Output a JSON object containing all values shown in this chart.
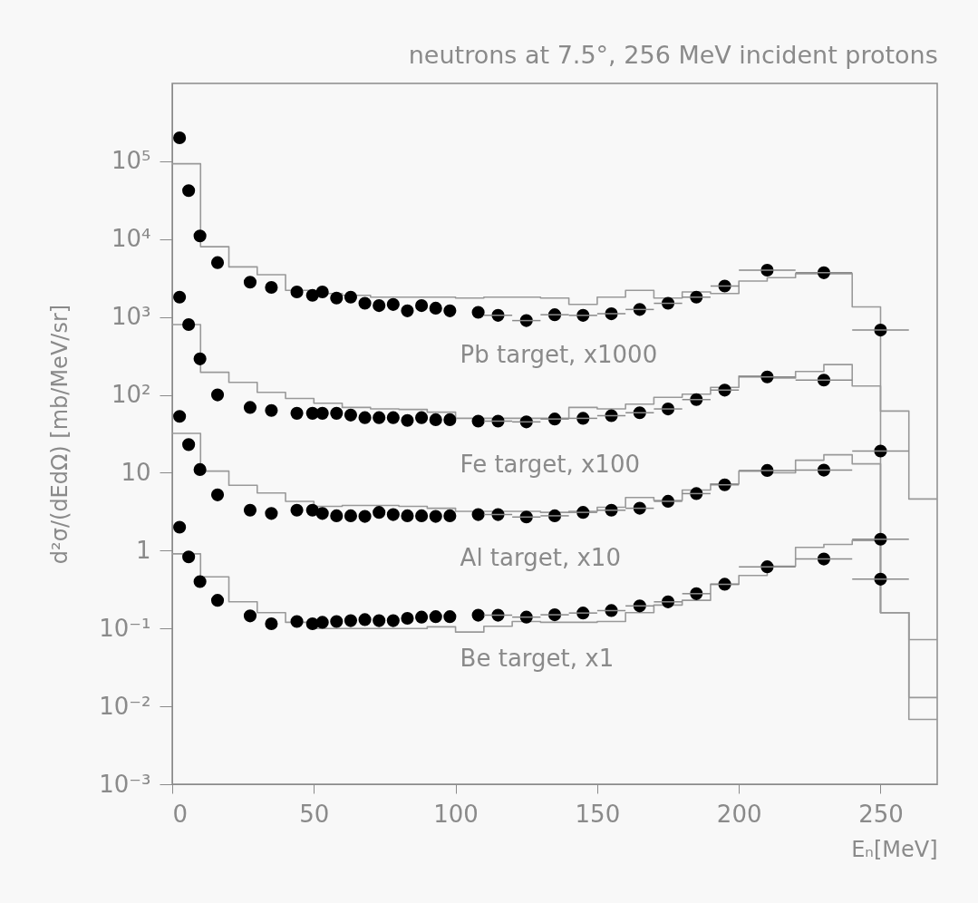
{
  "chart_data": {
    "type": "scatter",
    "title": "neutrons at 7.5°, 256 MeV incident protons",
    "xlabel": "Eₙ[MeV]",
    "ylabel": "d²σ/(dEdΩ) [mb/MeV/sr]",
    "log": "y",
    "xlim": [
      0,
      270
    ],
    "xticks": [
      0,
      50,
      100,
      150,
      200,
      250
    ],
    "ylim": [
      0.001,
      1000000
    ],
    "yticks": [
      {
        "value": 0.001,
        "label": "10⁻³"
      },
      {
        "value": 0.01,
        "label": "10⁻²"
      },
      {
        "value": 0.1,
        "label": "10⁻¹"
      },
      1,
      10,
      {
        "value": 100,
        "label": "10²"
      },
      {
        "value": 1000,
        "label": "10³"
      },
      {
        "value": 10000,
        "label": "10⁴"
      },
      {
        "value": 100000,
        "label": "10⁵"
      }
    ],
    "series": [
      {
        "type": "step",
        "color": "#999999",
        "x": [
          0,
          10,
          20,
          30,
          40,
          50,
          60,
          70,
          80,
          90,
          100,
          110,
          120,
          130,
          140,
          150,
          160,
          170,
          180,
          190,
          200,
          210,
          220,
          230,
          240,
          250,
          260,
          270
        ],
        "values": [
          93000,
          8000,
          4400,
          3500,
          2200,
          2000,
          1900,
          1800,
          1800,
          1800,
          1750,
          1800,
          1800,
          1750,
          1450,
          1800,
          2200,
          1750,
          2100,
          2000,
          2900,
          3200,
          3600,
          3600,
          1350,
          62,
          4.6,
          4.6
        ]
      },
      {
        "type": "step",
        "color": "#999999",
        "x": [
          0,
          10,
          20,
          30,
          40,
          50,
          60,
          70,
          80,
          90,
          100,
          110,
          120,
          130,
          140,
          150,
          160,
          170,
          180,
          190,
          200,
          210,
          220,
          230,
          240,
          250,
          260,
          270
        ],
        "values": [
          800,
          195,
          145,
          108,
          90,
          78,
          69,
          66,
          65,
          60,
          50,
          50,
          50,
          50,
          69,
          66,
          76,
          93,
          102,
          125,
          175,
          165,
          200,
          245,
          130,
          0.16,
          0.072,
          0.072
        ]
      },
      {
        "type": "step",
        "color": "#999999",
        "x": [
          0,
          10,
          20,
          30,
          40,
          50,
          60,
          70,
          80,
          90,
          100,
          110,
          120,
          130,
          140,
          150,
          160,
          170,
          180,
          190,
          200,
          210,
          220,
          230,
          240,
          250,
          260,
          270
        ],
        "values": [
          32,
          10.5,
          6.9,
          5.5,
          4.3,
          3.7,
          3.8,
          3.8,
          3.7,
          3.5,
          3.2,
          3.2,
          3.2,
          3.1,
          3.2,
          3.6,
          4.8,
          4.4,
          6.0,
          7.2,
          10.5,
          10,
          14.5,
          17,
          13,
          0.16,
          0.013,
          0.013
        ]
      },
      {
        "type": "step",
        "color": "#999999",
        "x": [
          0,
          10,
          20,
          30,
          40,
          50,
          60,
          70,
          80,
          90,
          100,
          110,
          120,
          130,
          140,
          150,
          160,
          170,
          180,
          190,
          200,
          210,
          220,
          230,
          240,
          250,
          260,
          270
        ],
        "values": [
          0.91,
          0.46,
          0.22,
          0.16,
          0.12,
          0.1,
          0.1,
          0.1,
          0.1,
          0.105,
          0.09,
          0.107,
          0.123,
          0.12,
          0.12,
          0.123,
          0.16,
          0.2,
          0.23,
          0.37,
          0.48,
          0.63,
          1.1,
          1.2,
          1.35,
          0.16,
          0.0068,
          0.0068
        ]
      },
      {
        "name": "Pb target, x1000",
        "marker": "circle",
        "color": "#000000",
        "x": [
          2.6,
          5.8,
          9.8,
          16,
          27.5,
          35,
          44,
          49.5,
          53,
          58,
          63,
          68,
          73,
          78,
          83,
          88,
          93,
          98,
          108,
          115,
          125,
          135,
          145,
          155,
          165,
          175,
          185,
          195,
          210,
          230,
          250
        ],
        "values": [
          200000,
          42000,
          11000,
          5000,
          2800,
          2400,
          2100,
          1900,
          2100,
          1750,
          1800,
          1500,
          1400,
          1450,
          1200,
          1400,
          1300,
          1200,
          1150,
          1050,
          900,
          1070,
          1050,
          1100,
          1250,
          1500,
          1800,
          2500,
          4000,
          3700,
          680
        ],
        "xerrors": [
          null,
          null,
          null,
          null,
          null,
          null,
          null,
          null,
          null,
          null,
          null,
          null,
          null,
          null,
          null,
          null,
          null,
          null,
          null,
          5,
          5,
          5,
          5,
          5,
          5,
          5,
          5,
          5,
          10,
          10,
          10
        ]
      },
      {
        "name": "Fe target, x100",
        "marker": "circle",
        "color": "#000000",
        "x": [
          2.6,
          5.8,
          9.8,
          16,
          27.5,
          35,
          44,
          49.5,
          53,
          58,
          63,
          68,
          73,
          78,
          83,
          88,
          93,
          98,
          108,
          115,
          125,
          135,
          145,
          155,
          165,
          175,
          185,
          195,
          210,
          230,
          250
        ],
        "values": [
          1800,
          800,
          290,
          100,
          69,
          63,
          58,
          58,
          58,
          58,
          55,
          51,
          51,
          51,
          47,
          51,
          48,
          48,
          46,
          46,
          45,
          49,
          50,
          54,
          59,
          66,
          87,
          115,
          170,
          155,
          19
        ],
        "xerrors": [
          null,
          null,
          null,
          null,
          null,
          null,
          null,
          null,
          null,
          null,
          null,
          null,
          null,
          null,
          null,
          null,
          null,
          null,
          null,
          5,
          5,
          5,
          5,
          5,
          5,
          5,
          5,
          5,
          10,
          10,
          10
        ]
      },
      {
        "name": "Al target, x10",
        "marker": "circle",
        "color": "#000000",
        "x": [
          2.6,
          5.8,
          9.8,
          16,
          27.5,
          35,
          44,
          49.5,
          53,
          58,
          63,
          68,
          73,
          78,
          83,
          88,
          93,
          98,
          108,
          115,
          125,
          135,
          145,
          155,
          165,
          175,
          185,
          195,
          210,
          230,
          250
        ],
        "values": [
          53,
          23,
          11,
          5.2,
          3.3,
          3.0,
          3.3,
          3.3,
          3.0,
          2.8,
          2.8,
          2.75,
          3.1,
          2.9,
          2.8,
          2.8,
          2.75,
          2.8,
          2.9,
          2.9,
          2.7,
          2.8,
          3.1,
          3.3,
          3.5,
          4.3,
          5.4,
          7.0,
          10.7,
          10.8,
          1.4
        ],
        "xerrors": [
          null,
          null,
          null,
          null,
          null,
          null,
          null,
          null,
          null,
          null,
          null,
          null,
          null,
          null,
          null,
          null,
          null,
          null,
          null,
          5,
          5,
          5,
          5,
          5,
          5,
          5,
          5,
          5,
          10,
          10,
          10
        ]
      },
      {
        "name": "Be target, x1",
        "marker": "circle",
        "color": "#000000",
        "x": [
          2.6,
          5.8,
          9.8,
          16,
          27.5,
          35,
          44,
          49.5,
          53,
          58,
          63,
          68,
          73,
          78,
          83,
          88,
          93,
          98,
          108,
          115,
          125,
          135,
          145,
          155,
          165,
          175,
          185,
          195,
          210,
          230,
          250
        ],
        "values": [
          2.0,
          0.83,
          0.4,
          0.23,
          0.145,
          0.115,
          0.123,
          0.115,
          0.12,
          0.123,
          0.126,
          0.13,
          0.126,
          0.126,
          0.135,
          0.14,
          0.142,
          0.142,
          0.148,
          0.148,
          0.14,
          0.15,
          0.158,
          0.17,
          0.195,
          0.22,
          0.28,
          0.37,
          0.62,
          0.78,
          0.43
        ],
        "xerrors": [
          null,
          null,
          null,
          null,
          null,
          null,
          null,
          null,
          null,
          null,
          null,
          null,
          null,
          null,
          null,
          null,
          null,
          null,
          null,
          5,
          5,
          5,
          5,
          5,
          5,
          5,
          5,
          5,
          10,
          10,
          10
        ]
      }
    ]
  }
}
